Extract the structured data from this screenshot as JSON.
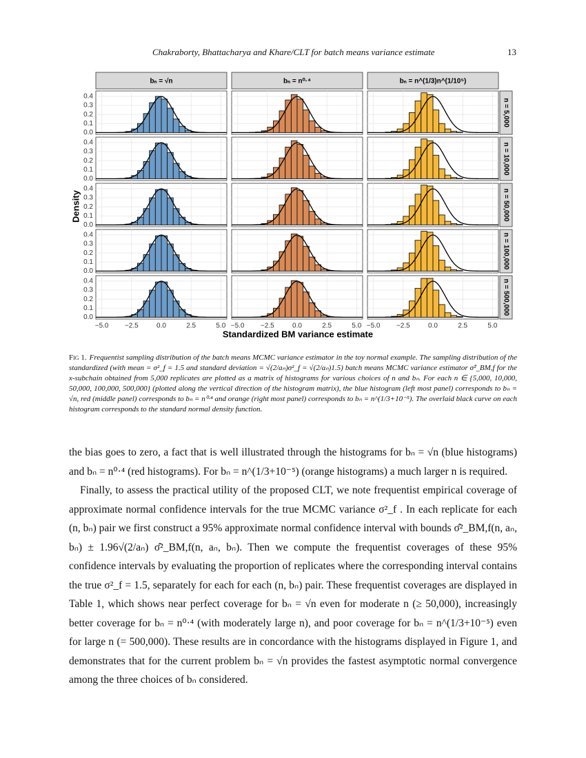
{
  "header": {
    "running_title": "Chakraborty, Bhattacharya and Khare/CLT for batch means variance estimate",
    "page_number": "13"
  },
  "chart_data": {
    "type": "histogram",
    "x_label": "Standardized BM variance estimate",
    "y_label": "Density",
    "bins": [
      -4.5,
      -4,
      -3.5,
      -3,
      -2.5,
      -2,
      -1.5,
      -1,
      -0.5,
      0,
      0.5,
      1,
      1.5,
      2,
      2.5,
      3,
      3.5
    ],
    "xlim": [
      -5.5,
      5.5
    ],
    "xticks": [
      {
        "value": -5,
        "label": "−5.0"
      },
      {
        "value": -2.5,
        "label": "−2.5"
      },
      {
        "value": 0,
        "label": "0.0"
      },
      {
        "value": 2.5,
        "label": "2.5"
      },
      {
        "value": 5,
        "label": "5.0"
      }
    ],
    "ylim": [
      -0.02,
      0.46
    ],
    "yticks": [
      {
        "value": 0,
        "label": "0.0"
      },
      0.1,
      0.2,
      0.3,
      0.4
    ],
    "grid": true,
    "facet_rows": [
      "n = 5,000",
      "n = 10,000",
      "n = 50,000",
      "n = 100,000",
      "n = 500,000"
    ],
    "series": [
      {
        "name": "bₙ = √n",
        "color": "#6d9cc8",
        "values": [
          [
            0,
            0,
            0.003,
            0.012,
            0.04,
            0.1,
            0.21,
            0.33,
            0.4,
            0.37,
            0.27,
            0.15,
            0.07,
            0.025,
            0.007,
            0.002
          ],
          [
            0,
            0,
            0.002,
            0.01,
            0.035,
            0.09,
            0.19,
            0.31,
            0.395,
            0.385,
            0.29,
            0.17,
            0.08,
            0.028,
            0.008,
            0.002
          ],
          [
            0,
            0,
            0.002,
            0.009,
            0.03,
            0.085,
            0.18,
            0.3,
            0.39,
            0.39,
            0.3,
            0.18,
            0.085,
            0.03,
            0.009,
            0.002
          ],
          [
            0,
            0,
            0.002,
            0.009,
            0.031,
            0.086,
            0.182,
            0.3,
            0.39,
            0.39,
            0.3,
            0.18,
            0.084,
            0.03,
            0.009,
            0.002
          ],
          [
            0,
            0,
            0.002,
            0.009,
            0.03,
            0.085,
            0.18,
            0.3,
            0.39,
            0.39,
            0.3,
            0.18,
            0.085,
            0.03,
            0.009,
            0.002
          ]
        ]
      },
      {
        "name": "bₙ = n⁰·⁴",
        "color": "#d98a56",
        "values": [
          [
            0,
            0.002,
            0.006,
            0.02,
            0.06,
            0.13,
            0.24,
            0.36,
            0.42,
            0.37,
            0.25,
            0.13,
            0.06,
            0.02,
            0.006,
            0.002
          ],
          [
            0,
            0.001,
            0.005,
            0.018,
            0.055,
            0.125,
            0.23,
            0.35,
            0.42,
            0.38,
            0.26,
            0.14,
            0.06,
            0.02,
            0.006,
            0.002
          ],
          [
            0,
            0,
            0.004,
            0.015,
            0.048,
            0.115,
            0.22,
            0.34,
            0.41,
            0.38,
            0.27,
            0.15,
            0.065,
            0.022,
            0.006,
            0.002
          ],
          [
            0,
            0,
            0.003,
            0.013,
            0.045,
            0.11,
            0.215,
            0.335,
            0.41,
            0.385,
            0.275,
            0.155,
            0.07,
            0.024,
            0.007,
            0.002
          ],
          [
            0,
            0,
            0.003,
            0.012,
            0.04,
            0.1,
            0.21,
            0.33,
            0.405,
            0.385,
            0.28,
            0.16,
            0.072,
            0.025,
            0.007,
            0.002
          ]
        ]
      },
      {
        "name": "bₙ = n^(1/3)n^(1/10⁵)",
        "color": "#f5b83b",
        "values": [
          [
            0,
            0.005,
            0.015,
            0.04,
            0.1,
            0.22,
            0.35,
            0.44,
            0.42,
            0.25,
            0.1,
            0.04,
            0.015,
            0.005,
            0,
            0
          ],
          [
            0,
            0.004,
            0.014,
            0.04,
            0.1,
            0.21,
            0.35,
            0.44,
            0.42,
            0.26,
            0.11,
            0.04,
            0.015,
            0.005,
            0,
            0
          ],
          [
            0,
            0.004,
            0.013,
            0.038,
            0.095,
            0.21,
            0.34,
            0.44,
            0.43,
            0.27,
            0.11,
            0.04,
            0.015,
            0.005,
            0,
            0
          ],
          [
            0,
            0.003,
            0.012,
            0.035,
            0.09,
            0.2,
            0.34,
            0.44,
            0.43,
            0.28,
            0.12,
            0.045,
            0.015,
            0.005,
            0,
            0
          ],
          [
            0,
            0.003,
            0.01,
            0.03,
            0.08,
            0.18,
            0.32,
            0.43,
            0.43,
            0.3,
            0.14,
            0.05,
            0.02,
            0.007,
            0,
            0
          ]
        ]
      }
    ]
  },
  "caption": {
    "label": "Fig 1.",
    "text": "Frequentist sampling distribution of the batch means MCMC variance estimator in the toy normal example. The sampling distribution of the standardized (with mean = σ²_f = 1.5 and standard deviation = √(2/aₙ)σ²_f = √(2/aₙ)1.5) batch means MCMC variance estimator σ̂²_BM,f for the x-subchain obtained from 5,000 replicates are plotted as a matrix of histograms for various choices of n and bₙ. For each n ∈ {5,000, 10,000, 50,000, 100,000, 500,000} (plotted along the vertical direction of the histogram matrix), the blue histogram (left most panel) corresponds to bₙ = √n, red (middle panel) corresponds to bₙ = n⁰·⁴ and orange (right most panel) corresponds to bₙ = n^(1/3+10⁻⁵). The overlaid black curve on each histogram corresponds to the standard normal density function."
  },
  "paragraphs": [
    "the bias goes to zero, a fact that is well illustrated through the histograms for bₙ = √n (blue histograms) and bₙ = n⁰·⁴ (red histograms). For bₙ = n^(1/3+10⁻⁵) (orange histograms) a much larger n is required.",
    "Finally, to assess the practical utility of the proposed CLT, we note frequentist empirical coverage of approximate normal confidence intervals for the true MCMC variance σ²_f . In each replicate for each (n, bₙ) pair we first construct a 95% approximate normal confidence interval with bounds σ̂²_BM,f(n, aₙ, bₙ) ± 1.96√(2/aₙ) σ̂²_BM,f(n, aₙ, bₙ). Then we compute the frequentist coverages of these 95% confidence intervals by evaluating the proportion of replicates where the corresponding interval contains the true σ²_f = 1.5, separately for each for each (n, bₙ) pair. These frequentist coverages are displayed in Table 1, which shows near perfect coverage for bₙ = √n even for moderate n (≥ 50,000), increasingly better coverage for bₙ = n⁰·⁴ (with moderately large n), and poor coverage for bₙ = n^(1/3+10⁻⁵) even for large n (= 500,000). These results are in concordance with the histograms displayed in Figure 1, and demonstrates that for the current problem bₙ = √n provides the fastest asymptotic normal convergence among the three choices of bₙ considered."
  ]
}
